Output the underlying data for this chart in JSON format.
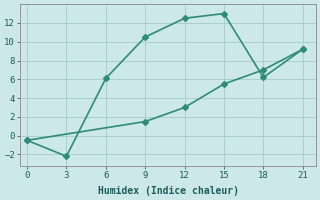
{
  "line1_x": [
    0,
    3,
    6,
    9,
    12,
    15,
    18,
    21
  ],
  "line1_y": [
    -0.5,
    -2.2,
    6.1,
    10.5,
    12.5,
    13.0,
    6.2,
    9.2
  ],
  "line2_x": [
    0,
    9,
    12,
    15,
    18,
    21
  ],
  "line2_y": [
    -0.5,
    1.5,
    3.0,
    5.5,
    7.0,
    9.2
  ],
  "color": "#2e8b7a",
  "bg_color": "#cce8e8",
  "grid_color": "#aacece",
  "xlabel": "Humidex (Indice chaleur)",
  "xlim": [
    -0.5,
    22
  ],
  "ylim": [
    -3.2,
    14
  ],
  "xticks": [
    0,
    3,
    6,
    9,
    12,
    15,
    18,
    21
  ],
  "yticks": [
    -2,
    0,
    2,
    4,
    6,
    8,
    10,
    12
  ],
  "marker": "D",
  "markersize": 3,
  "linewidth": 1.2
}
